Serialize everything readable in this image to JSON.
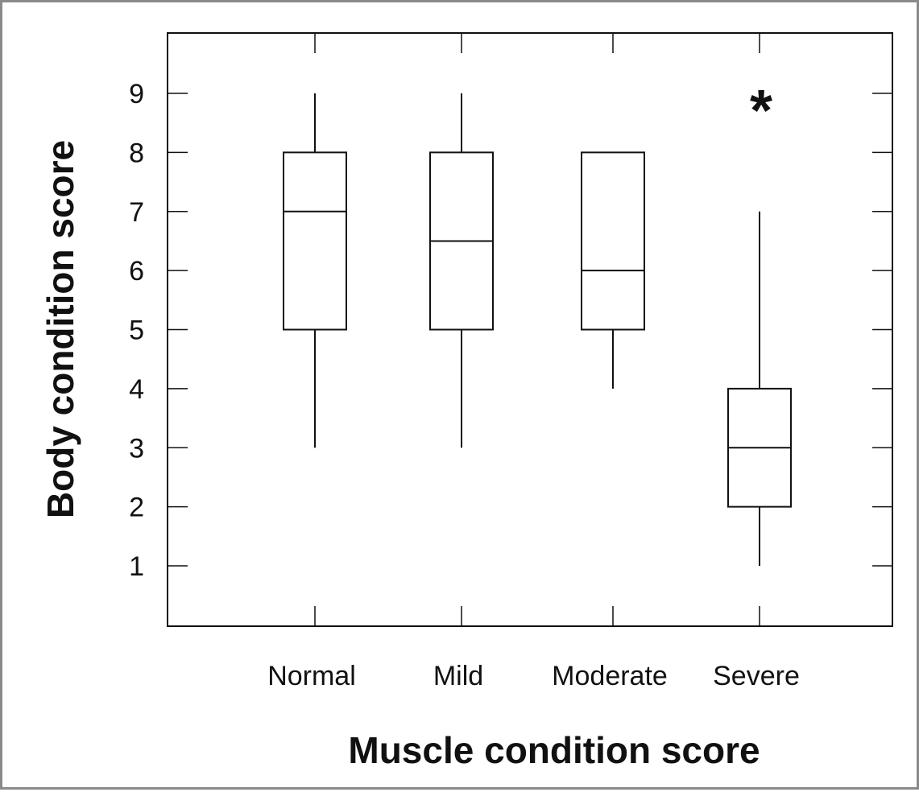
{
  "chart_data": {
    "type": "boxplot",
    "xlabel": "Muscle condition score",
    "ylabel": "Body condition score",
    "categories": [
      "Normal",
      "Mild",
      "Moderate",
      "Severe"
    ],
    "ylim": [
      0,
      10
    ],
    "y_ticks": [
      1,
      2,
      3,
      4,
      5,
      6,
      7,
      8,
      9
    ],
    "grid": false,
    "boxes": [
      {
        "category": "Normal",
        "whisker_low": 3,
        "q1": 5,
        "median": 7,
        "q3": 8,
        "whisker_high": 9
      },
      {
        "category": "Mild",
        "whisker_low": 3,
        "q1": 5,
        "median": 6.5,
        "q3": 8,
        "whisker_high": 9
      },
      {
        "category": "Moderate",
        "whisker_low": 4,
        "q1": 5,
        "median": 6,
        "q3": 8,
        "whisker_high": 8
      },
      {
        "category": "Severe",
        "whisker_low": 1,
        "q1": 2,
        "median": 3,
        "q3": 4,
        "whisker_high": 7
      }
    ],
    "annotations": [
      {
        "text": "*",
        "category": "Severe",
        "y": 9
      }
    ],
    "colors": {
      "stroke": "#111111",
      "box_fill": "#ffffff",
      "frame_border": "#8a8a8a"
    }
  }
}
